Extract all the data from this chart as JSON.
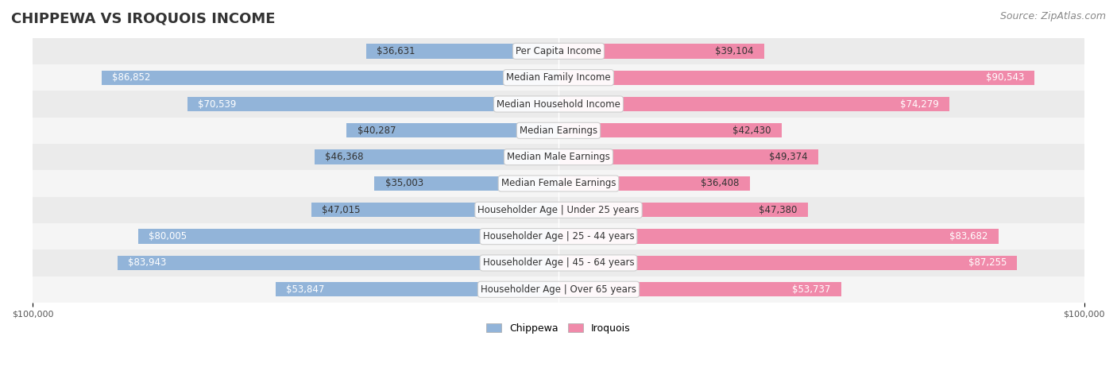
{
  "title": "CHIPPEWA VS IROQUOIS INCOME",
  "source": "Source: ZipAtlas.com",
  "categories": [
    "Per Capita Income",
    "Median Family Income",
    "Median Household Income",
    "Median Earnings",
    "Median Male Earnings",
    "Median Female Earnings",
    "Householder Age | Under 25 years",
    "Householder Age | 25 - 44 years",
    "Householder Age | 45 - 64 years",
    "Householder Age | Over 65 years"
  ],
  "chippewa_values": [
    36631,
    86852,
    70539,
    40287,
    46368,
    35003,
    47015,
    80005,
    83943,
    53847
  ],
  "iroquois_values": [
    39104,
    90543,
    74279,
    42430,
    49374,
    36408,
    47380,
    83682,
    87255,
    53737
  ],
  "max_value": 100000,
  "chippewa_color": "#92b4d9",
  "iroquois_color": "#f08aaa",
  "chippewa_dark_color": "#6699cc",
  "iroquois_dark_color": "#e8648a",
  "bg_color": "#f5f5f5",
  "row_bg_color": "#ececec",
  "label_bg_color": "#f0f0f0",
  "title_fontsize": 13,
  "source_fontsize": 9,
  "value_fontsize": 8.5,
  "category_fontsize": 8.5,
  "legend_fontsize": 9,
  "axis_label_fontsize": 8
}
